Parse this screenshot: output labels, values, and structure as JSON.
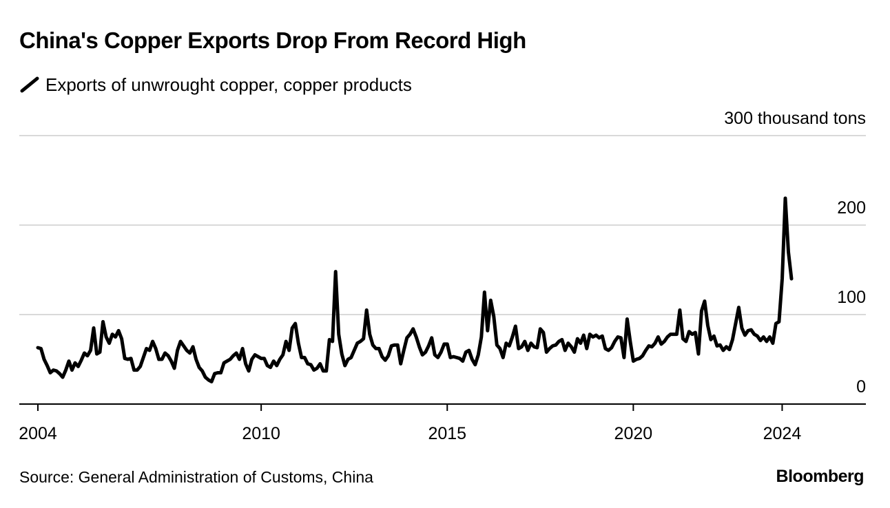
{
  "chart_data": {
    "type": "line",
    "title": "China's Copper Exports Drop From Record High",
    "series": [
      {
        "name": "Exports of unwrought copper, copper products",
        "color": "#000000",
        "start": "2004-01",
        "frequency": "monthly",
        "values": [
          63,
          62,
          50,
          43,
          35,
          38,
          37,
          34,
          30,
          38,
          48,
          38,
          46,
          42,
          49,
          57,
          54,
          60,
          85,
          56,
          58,
          92,
          75,
          68,
          78,
          75,
          82,
          73,
          51,
          50,
          51,
          38,
          38,
          42,
          52,
          62,
          60,
          70,
          62,
          50,
          50,
          57,
          54,
          48,
          40,
          60,
          70,
          65,
          60,
          57,
          64,
          50,
          41,
          37,
          30,
          27,
          25,
          34,
          35,
          35,
          46,
          48,
          50,
          54,
          57,
          50,
          62,
          45,
          37,
          50,
          55,
          53,
          51,
          51,
          43,
          41,
          48,
          43,
          50,
          55,
          70,
          60,
          85,
          90,
          68,
          52,
          52,
          45,
          44,
          38,
          40,
          45,
          37,
          37,
          72,
          70,
          148,
          78,
          56,
          43,
          50,
          52,
          60,
          68,
          70,
          73,
          105,
          78,
          66,
          62,
          62,
          53,
          49,
          54,
          65,
          66,
          66,
          45,
          60,
          74,
          78,
          84,
          75,
          64,
          55,
          58,
          65,
          74,
          55,
          52,
          58,
          67,
          67,
          52,
          53,
          52,
          51,
          48,
          58,
          60,
          50,
          44,
          55,
          75,
          125,
          82,
          116,
          98,
          66,
          62,
          52,
          68,
          65,
          75,
          87,
          62,
          64,
          70,
          60,
          68,
          64,
          63,
          84,
          80,
          58,
          62,
          65,
          66,
          70,
          72,
          60,
          68,
          64,
          58,
          73,
          68,
          77,
          62,
          78,
          75,
          77,
          74,
          76,
          62,
          60,
          63,
          70,
          75,
          74,
          52,
          95,
          70,
          48,
          50,
          51,
          54,
          60,
          65,
          64,
          68,
          75,
          67,
          70,
          75,
          78,
          78,
          78,
          105,
          73,
          70,
          81,
          78,
          80,
          56,
          104,
          115,
          88,
          72,
          76,
          65,
          66,
          60,
          64,
          61,
          72,
          90,
          108,
          85,
          77,
          82,
          83,
          78,
          76,
          71,
          75,
          70,
          75,
          68,
          90,
          92,
          140,
          230,
          170,
          140
        ]
      }
    ],
    "xlabel": "",
    "ylabel": "",
    "x_ticks": [
      "2004",
      "2010",
      "2015",
      "2020",
      "2024"
    ],
    "x_tick_dates": [
      "2004-01",
      "2010-01",
      "2015-01",
      "2020-01",
      "2024-01"
    ],
    "xlim": [
      "2003-07",
      "2026-04"
    ],
    "y_ticks": [
      0,
      100,
      200,
      300
    ],
    "y_tick_labels": [
      "0",
      "100",
      "200",
      "300 thousand tons"
    ],
    "ylim": [
      0,
      300
    ],
    "grid": true
  },
  "legend_label": "Exports of unwrought copper, copper products",
  "source": "Source: General Administration of Customs, China",
  "brand": "Bloomberg"
}
